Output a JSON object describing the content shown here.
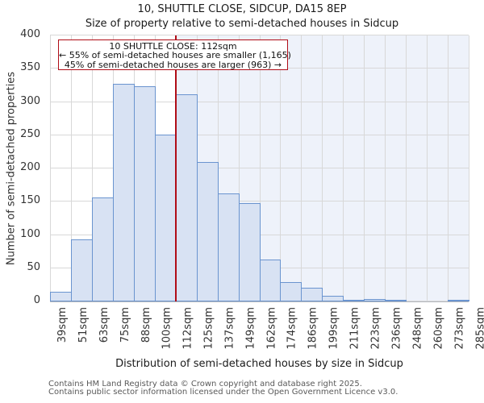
{
  "title": "10, SHUTTLE CLOSE, SIDCUP, DA15 8EP",
  "subtitle": "Size of property relative to semi-detached houses in Sidcup",
  "annotation": {
    "line1": "10 SHUTTLE CLOSE: 112sqm",
    "line2": "← 55% of semi-detached houses are smaller (1,165)",
    "line3": "45% of semi-detached houses are larger (963) →"
  },
  "chart_data": {
    "type": "bar",
    "title": "10, SHUTTLE CLOSE, SIDCUP, DA15 8EP",
    "subtitle": "Size of property relative to semi-detached houses in Sidcup",
    "xlabel": "Distribution of semi-detached houses by size in Sidcup",
    "ylabel": "Number of semi-detached properties",
    "bin_edges_sqm": [
      39,
      51,
      63,
      75,
      88,
      100,
      112,
      125,
      137,
      149,
      162,
      174,
      186,
      199,
      211,
      223,
      236,
      248,
      260,
      273,
      285
    ],
    "bin_labels": [
      "39sqm",
      "51sqm",
      "63sqm",
      "75sqm",
      "88sqm",
      "100sqm",
      "112sqm",
      "125sqm",
      "137sqm",
      "149sqm",
      "162sqm",
      "174sqm",
      "186sqm",
      "199sqm",
      "211sqm",
      "223sqm",
      "236sqm",
      "248sqm",
      "260sqm",
      "273sqm",
      "285sqm"
    ],
    "values": [
      14,
      93,
      156,
      327,
      324,
      251,
      312,
      210,
      162,
      148,
      63,
      29,
      21,
      8,
      2,
      4,
      2,
      0,
      0,
      2
    ],
    "yticks": [
      0,
      50,
      100,
      150,
      200,
      250,
      300,
      350,
      400
    ],
    "ylim": [
      0,
      400
    ],
    "marker_value_sqm": 112,
    "smaller_count": 1165,
    "smaller_pct": 55,
    "larger_count": 963,
    "larger_pct": 45,
    "grid": true,
    "legend": "none",
    "colors": {
      "bar_fill": "#d8e2f3",
      "bar_edge": "#6a94cf",
      "marker_red": "#b00d17",
      "shade_right_of_marker": "#eef2fa",
      "gridline": "#d8d8d8",
      "axis_line": "#b4b8bf"
    }
  },
  "footer": {
    "line1": "Contains HM Land Registry data © Crown copyright and database right 2025.",
    "line2": "Contains public sector information licensed under the Open Government Licence v3.0."
  }
}
